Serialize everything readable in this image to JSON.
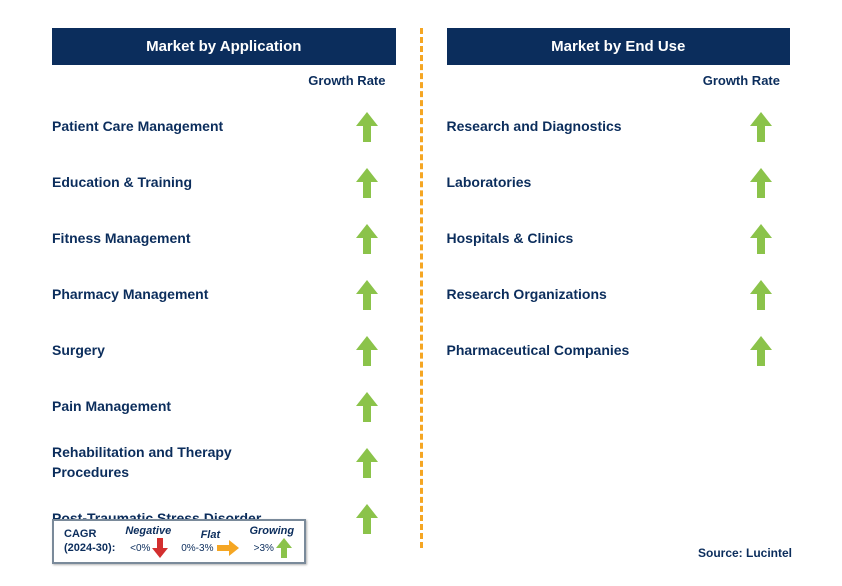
{
  "left": {
    "title": "Market by Application",
    "sub": "Growth Rate",
    "items": [
      {
        "label": "Patient Care Management",
        "trend": "up"
      },
      {
        "label": "Education & Training",
        "trend": "up"
      },
      {
        "label": "Fitness Management",
        "trend": "up"
      },
      {
        "label": "Pharmacy Management",
        "trend": "up"
      },
      {
        "label": "Surgery",
        "trend": "up"
      },
      {
        "label": "Pain Management",
        "trend": "up"
      },
      {
        "label": "Rehabilitation and Therapy Procedures",
        "trend": "up"
      },
      {
        "label": "Post-Traumatic Stress Disorder",
        "trend": "up"
      }
    ]
  },
  "right": {
    "title": "Market by End Use",
    "sub": "Growth Rate",
    "items": [
      {
        "label": "Research and Diagnostics",
        "trend": "up"
      },
      {
        "label": "Laboratories",
        "trend": "up"
      },
      {
        "label": "Hospitals & Clinics",
        "trend": "up"
      },
      {
        "label": "Research Organizations",
        "trend": "up"
      },
      {
        "label": "Pharmaceutical Companies",
        "trend": "up"
      }
    ]
  },
  "legend": {
    "prefix_line1": "CAGR",
    "prefix_line2": "(2024-30):",
    "neg_label": "Negative",
    "neg_range": "<0%",
    "flat_label": "Flat",
    "flat_range": "0%-3%",
    "grow_label": "Growing",
    "grow_range": ">3%"
  },
  "source": "Source: Lucintel",
  "colors": {
    "header_bg": "#0b2d5c",
    "text": "#0b2d5c",
    "up_arrow": "#8bc34a",
    "down_arrow": "#d32f2f",
    "flat_arrow": "#f5a623",
    "divider": "#f5a623",
    "legend_border": "#7a8a9a"
  }
}
